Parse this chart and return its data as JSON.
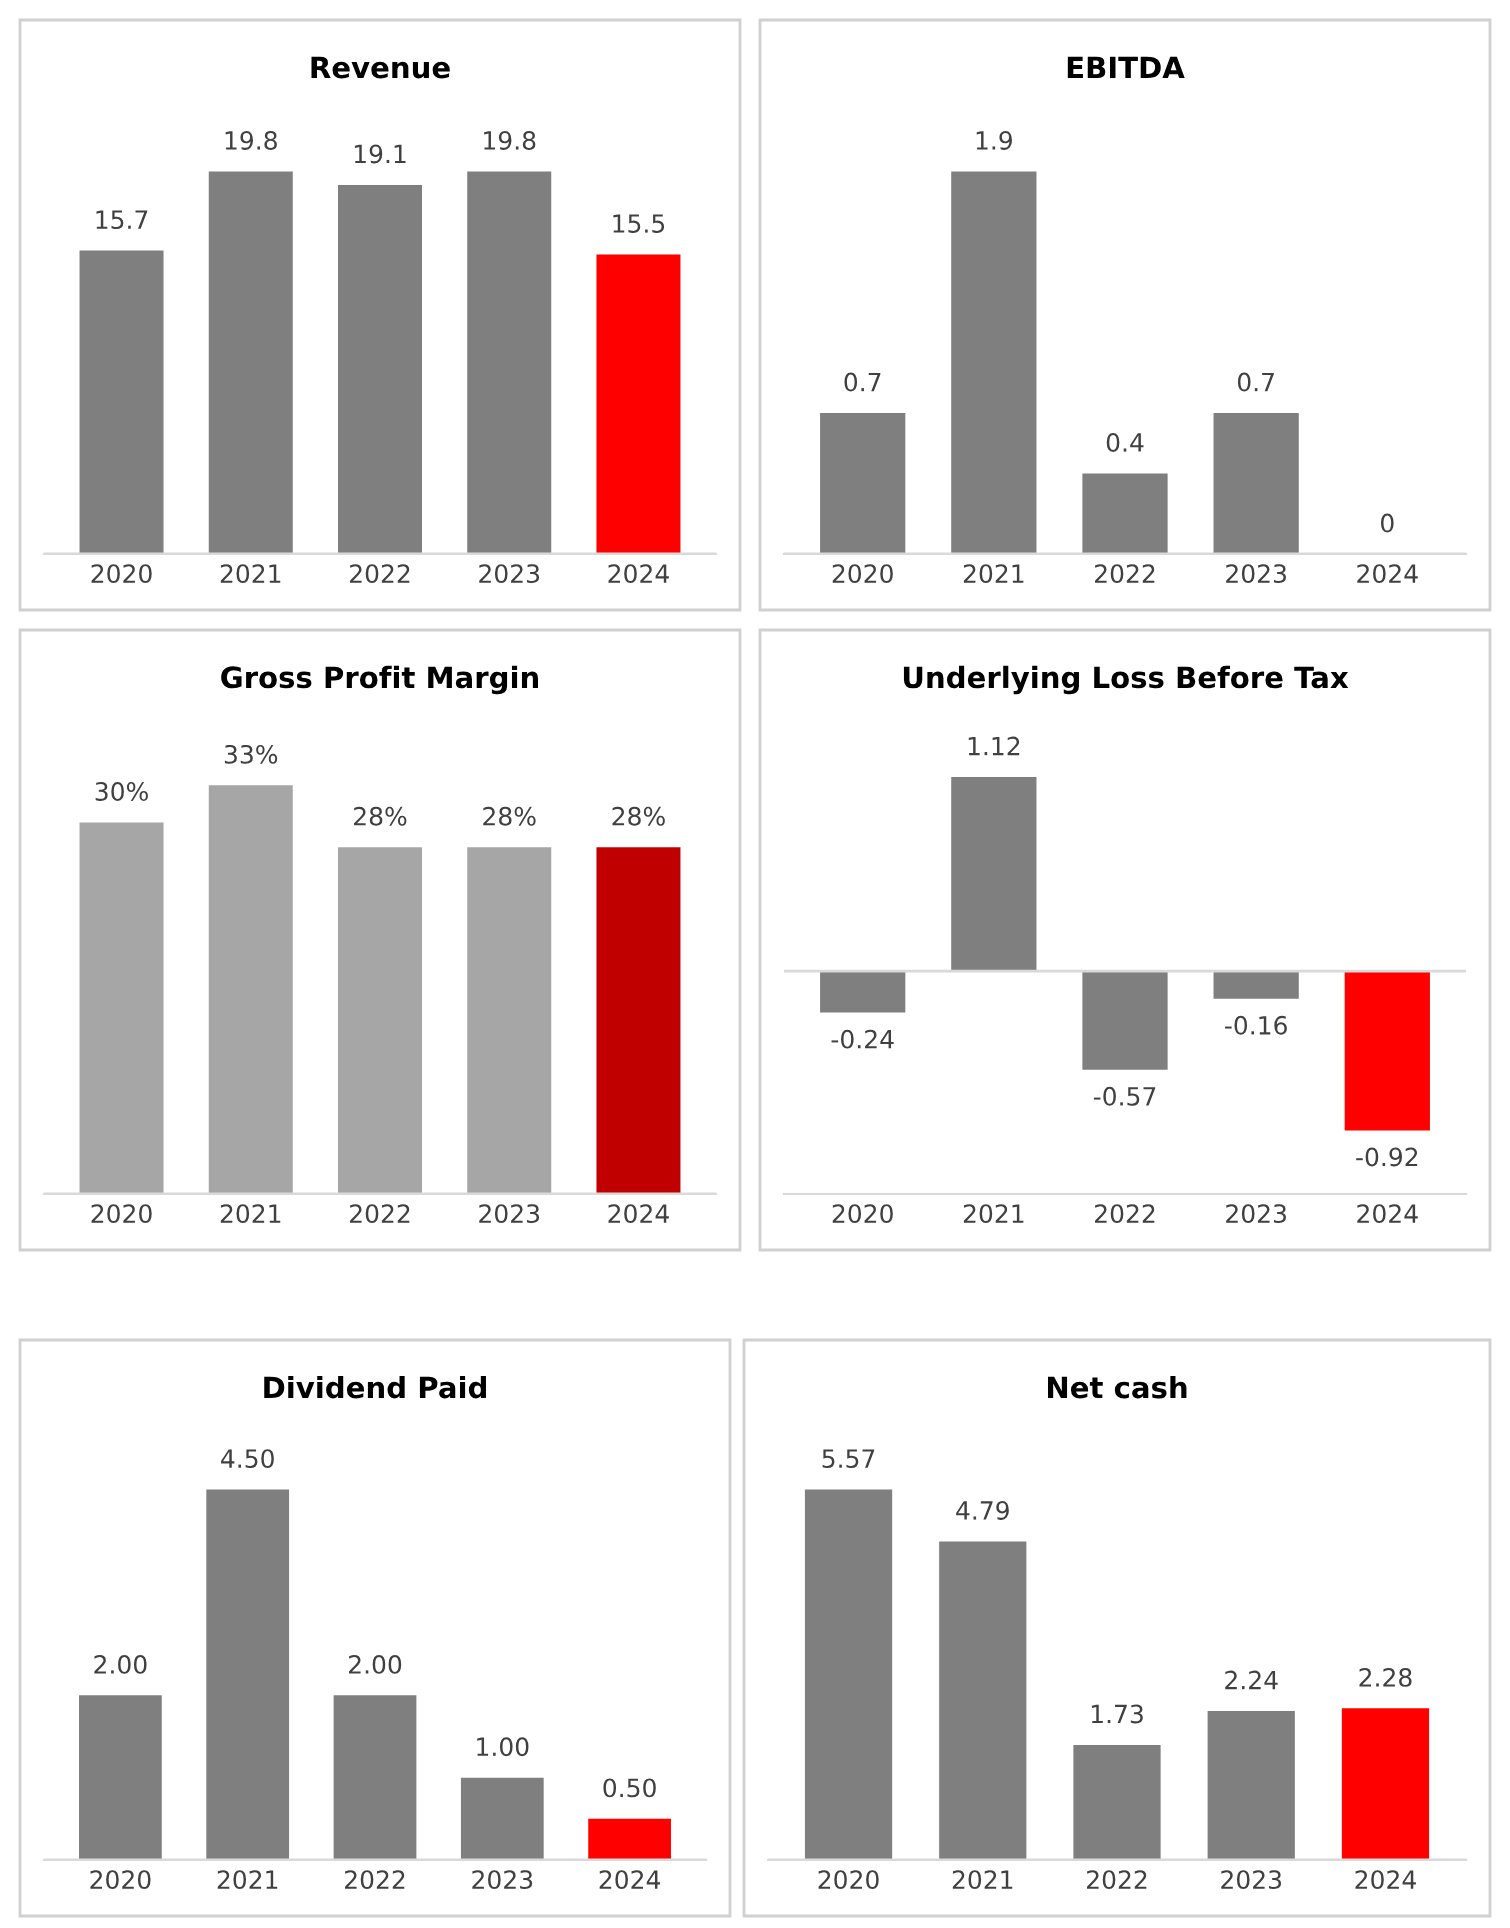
{
  "chart_data": [
    {
      "type": "bar",
      "title": "Revenue",
      "categories": [
        "2020",
        "2021",
        "2022",
        "2023",
        "2024"
      ],
      "values": [
        15.7,
        19.8,
        19.1,
        19.8,
        15.5
      ],
      "colors": [
        "#7f7f7f",
        "#7f7f7f",
        "#7f7f7f",
        "#7f7f7f",
        "#ff0000"
      ],
      "data_labels": true
    },
    {
      "type": "bar",
      "title": "EBITDA",
      "categories": [
        "2020",
        "2021",
        "2022",
        "2023",
        "2024"
      ],
      "values": [
        0.7,
        1.9,
        0.4,
        0.7,
        0
      ],
      "colors": [
        "#7f7f7f",
        "#7f7f7f",
        "#7f7f7f",
        "#7f7f7f",
        "#ff0000"
      ],
      "data_labels": true
    },
    {
      "type": "bar",
      "title": "Gross Profit Margin",
      "categories": [
        "2020",
        "2021",
        "2022",
        "2023",
        "2024"
      ],
      "values": [
        30,
        33,
        28,
        28,
        28
      ],
      "value_labels": [
        "30%",
        "33%",
        "28%",
        "28%",
        "28%"
      ],
      "colors": [
        "#a6a6a6",
        "#a6a6a6",
        "#a6a6a6",
        "#a6a6a6",
        "#c00000"
      ]
    },
    {
      "type": "bar",
      "title": "Underlying Loss Before Tax",
      "categories": [
        "2020",
        "2021",
        "2022",
        "2023",
        "2024"
      ],
      "values": [
        -0.24,
        1.12,
        -0.57,
        -0.16,
        -0.92
      ],
      "colors": [
        "#7f7f7f",
        "#7f7f7f",
        "#7f7f7f",
        "#7f7f7f",
        "#ff0000"
      ],
      "data_labels": true
    },
    {
      "type": "bar",
      "title": "Dividend Paid",
      "categories": [
        "2020",
        "2021",
        "2022",
        "2023",
        "2024"
      ],
      "values": [
        2.0,
        4.5,
        2.0,
        1.0,
        0.5
      ],
      "value_labels": [
        "2.00",
        "4.50",
        "2.00",
        "1.00",
        "0.50"
      ],
      "colors": [
        "#7f7f7f",
        "#7f7f7f",
        "#7f7f7f",
        "#7f7f7f",
        "#ff0000"
      ]
    },
    {
      "type": "bar",
      "title": "Net cash",
      "categories": [
        "2020",
        "2021",
        "2022",
        "2023",
        "2024"
      ],
      "values": [
        5.57,
        4.79,
        1.73,
        2.24,
        2.28
      ],
      "colors": [
        "#7f7f7f",
        "#7f7f7f",
        "#7f7f7f",
        "#7f7f7f",
        "#ff0000"
      ],
      "data_labels": true
    }
  ]
}
